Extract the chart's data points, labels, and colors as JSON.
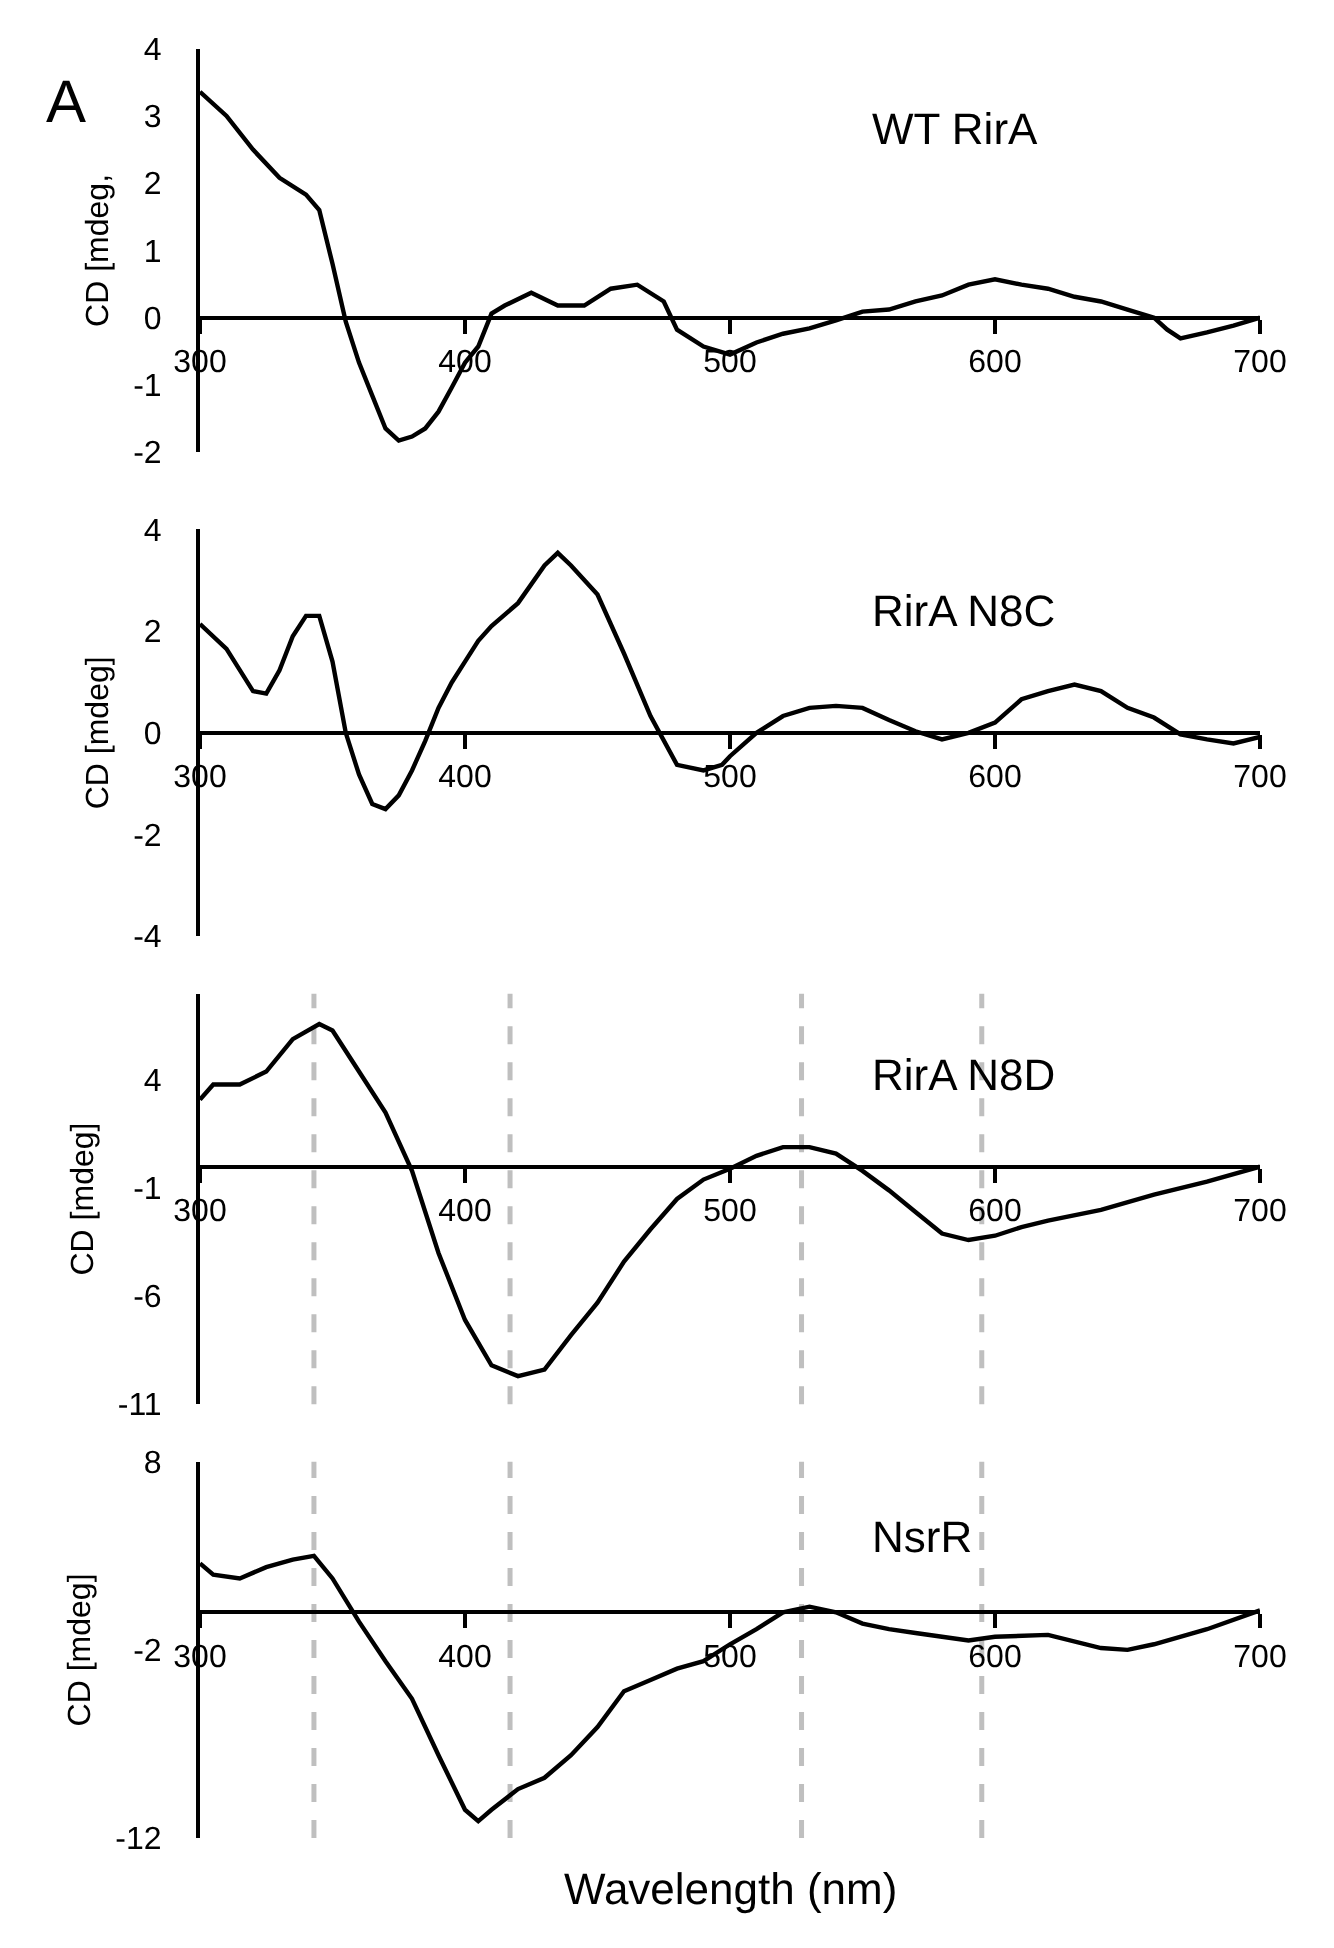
{
  "chart_data": [
    {
      "type": "line",
      "ylabel": "CD [mdeg,",
      "annotations": [
        "A"
      ],
      "legend": false,
      "xlim": [
        300,
        700
      ],
      "xticks": [
        300,
        400,
        500,
        600,
        700
      ],
      "ylim": [
        -2,
        4
      ],
      "yticks": [
        -2,
        -1,
        0,
        1,
        2,
        3,
        4
      ],
      "x": [
        300,
        310,
        320,
        330,
        340,
        345,
        350,
        355,
        360,
        365,
        370,
        375,
        380,
        385,
        390,
        395,
        400,
        405,
        410,
        415,
        425,
        435,
        445,
        455,
        465,
        475,
        480,
        490,
        500,
        510,
        520,
        530,
        540,
        550,
        560,
        570,
        580,
        590,
        600,
        610,
        620,
        630,
        640,
        650,
        660,
        665,
        670,
        680,
        690,
        700
      ],
      "series": [
        {
          "name": "WT RirA",
          "color": "#000000",
          "values": [
            3.36,
            3.0,
            2.5,
            2.08,
            1.83,
            1.6,
            0.8,
            -0.06,
            -0.67,
            -1.16,
            -1.65,
            -1.83,
            -1.77,
            -1.65,
            -1.4,
            -1.04,
            -0.67,
            -0.43,
            0.06,
            0.18,
            0.37,
            0.18,
            0.18,
            0.43,
            0.49,
            0.24,
            -0.18,
            -0.43,
            -0.55,
            -0.37,
            -0.24,
            -0.16,
            -0.04,
            0.09,
            0.12,
            0.24,
            0.33,
            0.49,
            0.57,
            0.49,
            0.43,
            0.31,
            0.24,
            0.12,
            0.0,
            -0.18,
            -0.31,
            -0.22,
            -0.12,
            0.0
          ]
        }
      ]
    },
    {
      "type": "line",
      "ylabel": "CD [mdeg]",
      "legend": false,
      "xlim": [
        300,
        700
      ],
      "xticks": [
        300,
        400,
        500,
        600,
        700
      ],
      "ylim": [
        -4,
        4
      ],
      "yticks": [
        -4,
        -2,
        0,
        2,
        4
      ],
      "x": [
        300,
        310,
        320,
        325,
        330,
        335,
        340,
        345,
        350,
        355,
        360,
        365,
        370,
        375,
        380,
        385,
        390,
        395,
        400,
        405,
        410,
        420,
        430,
        435,
        440,
        450,
        460,
        470,
        480,
        490,
        497,
        500,
        510,
        520,
        530,
        540,
        550,
        560,
        570,
        580,
        590,
        600,
        610,
        620,
        630,
        640,
        650,
        660,
        670,
        680,
        690,
        700
      ],
      "series": [
        {
          "name": "RirA N8C",
          "color": "#000000",
          "values": [
            2.14,
            1.65,
            0.82,
            0.77,
            1.23,
            1.9,
            2.3,
            2.3,
            1.4,
            0.0,
            -0.82,
            -1.4,
            -1.5,
            -1.23,
            -0.74,
            -0.16,
            0.49,
            0.99,
            1.4,
            1.81,
            2.1,
            2.55,
            3.29,
            3.54,
            3.29,
            2.72,
            1.56,
            0.33,
            -0.63,
            -0.74,
            -0.63,
            -0.46,
            0.0,
            0.33,
            0.49,
            0.53,
            0.49,
            0.25,
            0.03,
            -0.13,
            0.0,
            0.2,
            0.66,
            0.82,
            0.95,
            0.82,
            0.49,
            0.3,
            -0.03,
            -0.13,
            -0.21,
            -0.08
          ]
        }
      ]
    },
    {
      "type": "line",
      "ylabel": "CD [mdeg]",
      "legend": false,
      "xlim": [
        300,
        700
      ],
      "xticks": [
        300,
        400,
        500,
        600,
        700
      ],
      "ylim": [
        -11,
        8
      ],
      "yticks": [
        -11,
        -6,
        -1,
        4
      ],
      "x": [
        300,
        305,
        315,
        325,
        335,
        345,
        350,
        360,
        370,
        380,
        390,
        400,
        410,
        420,
        430,
        440,
        450,
        460,
        470,
        480,
        490,
        500,
        510,
        520,
        530,
        540,
        550,
        560,
        570,
        580,
        590,
        600,
        610,
        620,
        640,
        660,
        680,
        700
      ],
      "series": [
        {
          "name": "RirA N8D",
          "color": "#000000",
          "values": [
            3.1,
            3.8,
            3.8,
            4.4,
            5.9,
            6.6,
            6.3,
            4.4,
            2.5,
            -0.2,
            -4.0,
            -7.1,
            -9.2,
            -9.7,
            -9.4,
            -7.8,
            -6.3,
            -4.4,
            -2.9,
            -1.5,
            -0.6,
            -0.1,
            0.5,
            0.9,
            0.9,
            0.6,
            -0.2,
            -1.1,
            -2.1,
            -3.1,
            -3.4,
            -3.2,
            -2.8,
            -2.5,
            -2.0,
            -1.3,
            -0.7,
            0.0
          ]
        }
      ],
      "ref_lines": [
        {
          "axis": "x",
          "value": 343,
          "color": "#bfbfbf",
          "line_style": "dashed"
        },
        {
          "axis": "x",
          "value": 417,
          "color": "#bfbfbf",
          "line_style": "dashed"
        },
        {
          "axis": "x",
          "value": 527,
          "color": "#bfbfbf",
          "line_style": "dashed"
        },
        {
          "axis": "x",
          "value": 595,
          "color": "#bfbfbf",
          "line_style": "dashed"
        }
      ]
    },
    {
      "type": "line",
      "ylabel": "CD [mdeg]",
      "xlabel": "Wavelength (nm)",
      "legend": false,
      "xlim": [
        300,
        700
      ],
      "xticks": [
        300,
        400,
        500,
        600,
        700
      ],
      "ylim": [
        -12,
        8
      ],
      "yticks": [
        -12,
        -2,
        8
      ],
      "x": [
        300,
        305,
        315,
        325,
        335,
        343,
        350,
        360,
        370,
        380,
        390,
        400,
        405,
        410,
        420,
        430,
        440,
        450,
        460,
        470,
        480,
        490,
        500,
        510,
        520,
        530,
        540,
        550,
        560,
        570,
        580,
        590,
        600,
        620,
        640,
        650,
        660,
        680,
        700
      ],
      "series": [
        {
          "name": "NsrR",
          "color": "#000000",
          "values": [
            2.6,
            2.0,
            1.8,
            2.4,
            2.8,
            3.0,
            1.8,
            -0.5,
            -2.6,
            -4.6,
            -7.6,
            -10.5,
            -11.1,
            -10.5,
            -9.4,
            -8.8,
            -7.6,
            -6.1,
            -4.2,
            -3.6,
            -3.0,
            -2.6,
            -1.7,
            -0.9,
            0.0,
            0.3,
            0.0,
            -0.6,
            -0.9,
            -1.1,
            -1.3,
            -1.5,
            -1.3,
            -1.2,
            -1.9,
            -2.0,
            -1.7,
            -0.9,
            0.1
          ]
        }
      ],
      "ref_lines": [
        {
          "axis": "x",
          "value": 343,
          "color": "#bfbfbf",
          "line_style": "dashed"
        },
        {
          "axis": "x",
          "value": 417,
          "color": "#bfbfbf",
          "line_style": "dashed"
        },
        {
          "axis": "x",
          "value": 527,
          "color": "#bfbfbf",
          "line_style": "dashed"
        },
        {
          "axis": "x",
          "value": 595,
          "color": "#bfbfbf",
          "line_style": "dashed"
        }
      ]
    }
  ]
}
